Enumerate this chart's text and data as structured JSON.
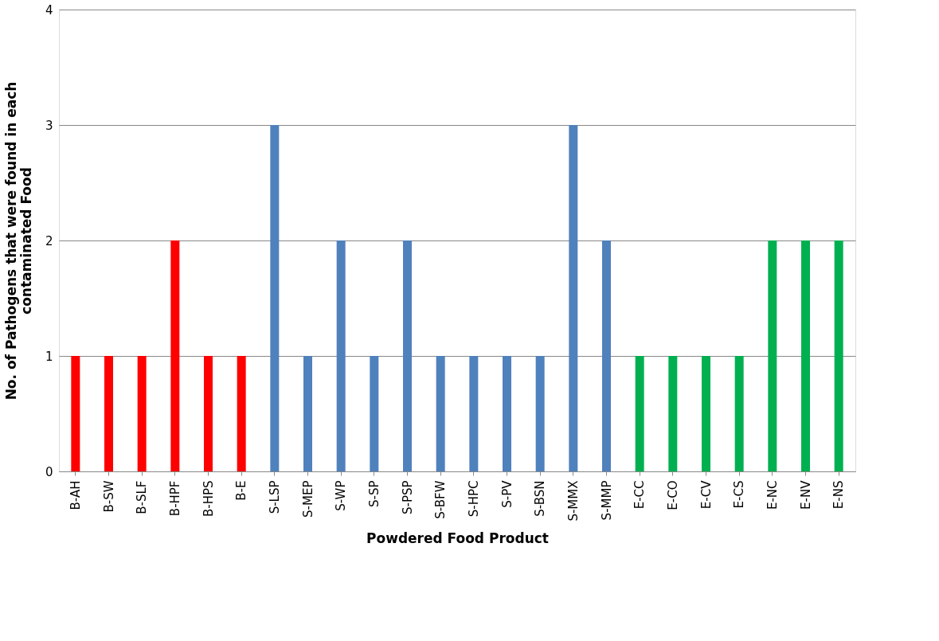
{
  "chart_data": {
    "type": "bar",
    "xlabel": "Powdered Food Product",
    "ylabel": "No. of Pathogens that were found in each contaminated Food",
    "categories": [
      "B-AH",
      "B-SW",
      "B-SLF",
      "B-HPF",
      "B-HPS",
      "B-E",
      "S-LSP",
      "S-MEP",
      "S-WP",
      "S-SP",
      "S-PSP",
      "S-BFW",
      "S-HPC",
      "S-PV",
      "S-BSN",
      "S-MMX",
      "S-MMP",
      "E-CC",
      "E-CO",
      "E-CV",
      "E-CS",
      "E-NC",
      "E-NV",
      "E-NS"
    ],
    "values": [
      1,
      1,
      1,
      2,
      1,
      1,
      3,
      1,
      2,
      1,
      2,
      1,
      1,
      1,
      1,
      3,
      2,
      1,
      1,
      1,
      1,
      2,
      2,
      2
    ],
    "colors": [
      "#ff0000",
      "#ff0000",
      "#ff0000",
      "#ff0000",
      "#ff0000",
      "#ff0000",
      "#4f81bd",
      "#4f81bd",
      "#4f81bd",
      "#4f81bd",
      "#4f81bd",
      "#4f81bd",
      "#4f81bd",
      "#4f81bd",
      "#4f81bd",
      "#4f81bd",
      "#4f81bd",
      "#00b050",
      "#00b050",
      "#00b050",
      "#00b050",
      "#00b050",
      "#00b050",
      "#00b050"
    ],
    "ylim": [
      0,
      4
    ],
    "yticks": [
      0,
      1,
      2,
      3,
      4
    ],
    "grid": "y",
    "legend": false
  }
}
